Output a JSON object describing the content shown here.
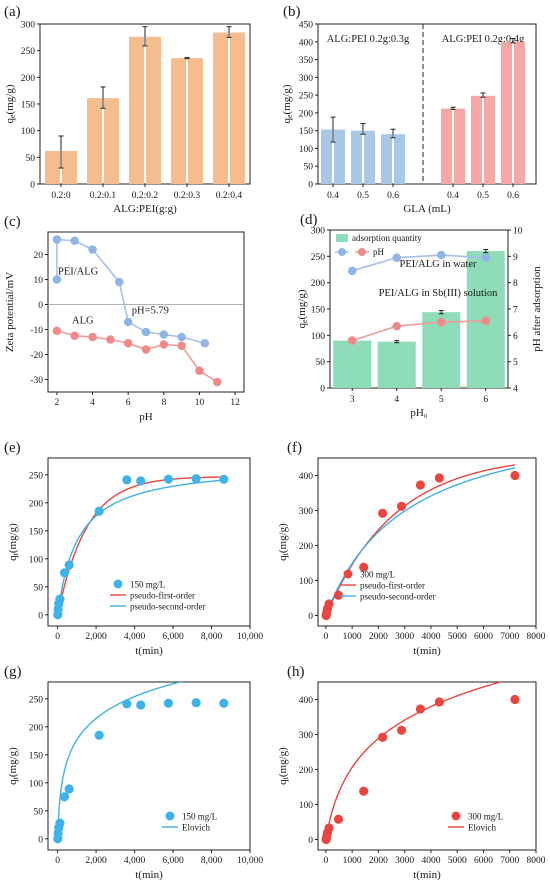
{
  "colors": {
    "orange": "#f5bc8e",
    "blue": "#a9c8e8",
    "pink": "#f7a8a6",
    "green": "#8fdcb8",
    "blue_marker": "#8fb6e6",
    "blue_line": "#a9bff0",
    "red_marker": "#f08a8a",
    "red_line": "#ef9a9a",
    "kin_red": "#e8463e",
    "kin_blue": "#3fb2e8",
    "gray_line": "#999999",
    "dashed": "#222222"
  },
  "chart_data": [
    {
      "panel": "(a)",
      "type": "bar",
      "categories": [
        "0.2:0",
        "0.2:0.1",
        "0.2:0.2",
        "0.2:0.3",
        "0.2:0.4"
      ],
      "values": [
        [
          62,
          62
        ],
        [
          161,
          161
        ],
        [
          276,
          276
        ],
        [
          236,
          236
        ],
        [
          284,
          284
        ]
      ],
      "error_bars": [
        [
          60,
          30
        ],
        [
          162,
          20
        ],
        [
          277,
          18
        ],
        [
          236,
          1
        ],
        [
          285,
          10
        ]
      ],
      "xlabel": "ALG:PEI(g:g)",
      "ylabel": "q_e(mg/g)",
      "ylim": [
        0,
        300
      ],
      "yticks": [
        "0",
        "50",
        "100",
        "150",
        "200",
        "250",
        "300"
      ]
    },
    {
      "panel": "(b)",
      "type": "bar",
      "groups": [
        "ALG:PEI 0.2g:0.3g",
        "ALG:PEI 0.2g:0.4g"
      ],
      "categories": [
        "0.4",
        "0.5",
        "0.6",
        "0.4",
        "0.5",
        "0.6"
      ],
      "values": [
        [
          153,
          153
        ],
        [
          150,
          150
        ],
        [
          140,
          140
        ],
        [
          212,
          212
        ],
        [
          248,
          248
        ],
        [
          400,
          400
        ]
      ],
      "error_bars": [
        [
          153,
          35
        ],
        [
          155,
          15
        ],
        [
          142,
          12
        ],
        [
          213,
          3
        ],
        [
          250,
          6
        ],
        [
          403,
          6
        ]
      ],
      "xlabel": "GLA (mL)",
      "ylabel": "q_e(mg/g)",
      "ylim": [
        0,
        450
      ],
      "yticks": [
        "0",
        "50",
        "100",
        "150",
        "200",
        "250",
        "300",
        "350",
        "400",
        "450"
      ]
    },
    {
      "panel": "(c)",
      "type": "line",
      "series": [
        {
          "name": "PEI/ALG",
          "x": [
            2,
            2,
            3,
            4,
            5.5,
            6,
            7,
            8,
            9,
            10.3
          ],
          "y": [
            10,
            26,
            25.5,
            22,
            9,
            -7,
            -11,
            -12,
            -13,
            -15.5
          ]
        },
        {
          "name": "ALG",
          "x": [
            2,
            3,
            4,
            5,
            6,
            7,
            8,
            9,
            10,
            11
          ],
          "y": [
            -10.5,
            -12.5,
            -13,
            -14,
            -15.5,
            -18,
            -16,
            -16.5,
            -26.5,
            -31
          ]
        }
      ],
      "annotation": "pH=5.79",
      "xlabel": "pH",
      "ylabel": "Zeta potential/mV",
      "xlim": [
        1.5,
        12.5
      ],
      "ylim": [
        -35,
        29
      ],
      "xticks": [
        "2",
        "4",
        "6",
        "8",
        "10",
        "12"
      ],
      "yticks": [
        "-30",
        "-20",
        "-10",
        "0",
        "10",
        "20"
      ]
    },
    {
      "panel": "(d)",
      "type": "bar",
      "categories": [
        "3",
        "4",
        "5",
        "6"
      ],
      "values": [
        90,
        88,
        144,
        260
      ],
      "error_bars": [
        2,
        2,
        3,
        3
      ],
      "series": [
        {
          "name": "pH",
          "values": [
            8.45,
            8.95,
            9.05,
            8.95
          ]
        },
        {
          "name": "pH",
          "values": [
            5.8,
            6.35,
            6.5,
            6.55
          ]
        }
      ],
      "legend": [
        "adsorption quantity",
        "pH"
      ],
      "annotations": [
        "PEI/ALG in water",
        "PEI/ALG in Sb(III) solution"
      ],
      "xlabel": "pH₀",
      "ylabel": "q_e(mg/g)",
      "ylabel_right": "pH after adsorption",
      "ylim": [
        0,
        300
      ],
      "ylim_right": [
        4,
        10
      ],
      "yticks": [
        "0",
        "50",
        "100",
        "150",
        "200",
        "250",
        "300"
      ],
      "yticks_right": [
        "4",
        "5",
        "6",
        "7",
        "8",
        "9",
        "10"
      ]
    },
    {
      "panel": "(e)",
      "type": "scatter",
      "series": [
        {
          "name": "150 mg/L",
          "x": [
            10,
            30,
            60,
            120,
            360,
            600,
            2160,
            3600,
            4320,
            5760,
            7200,
            8640
          ],
          "y": [
            0,
            10,
            20,
            28,
            75,
            89,
            185,
            241,
            239,
            242,
            243,
            242
          ]
        },
        {
          "name": "pseudo-first-order"
        },
        {
          "name": "pseudo-second-order"
        }
      ],
      "xlabel": "t(min)",
      "ylabel": "q_t(mg/g)",
      "xlim": [
        -500,
        10000
      ],
      "ylim": [
        -20,
        280
      ],
      "xticks": [
        "0",
        "2,000",
        "4,000",
        "6,000",
        "8,000",
        "10,000"
      ],
      "yticks": [
        "0",
        "50",
        "100",
        "150",
        "200",
        "250"
      ]
    },
    {
      "panel": "(f)",
      "type": "scatter",
      "series": [
        {
          "name": "300 mg/L",
          "x": [
            10,
            30,
            60,
            120,
            480,
            1440,
            2160,
            2880,
            3600,
            4320,
            7200
          ],
          "y": [
            0,
            8,
            20,
            33,
            58,
            138,
            292,
            312,
            373,
            393,
            400
          ]
        },
        {
          "name": "pseudo-first-order"
        },
        {
          "name": "pseudo-second-order"
        }
      ],
      "xlabel": "t(min)",
      "ylabel": "q_t(mg/g)",
      "xlim": [
        -300,
        8000
      ],
      "ylim": [
        -30,
        450
      ],
      "xticks": [
        "0",
        "1000",
        "2000",
        "3000",
        "4000",
        "5000",
        "6000",
        "7000",
        "8000"
      ],
      "yticks": [
        "0",
        "100",
        "200",
        "300",
        "400"
      ]
    },
    {
      "panel": "(g)",
      "type": "scatter",
      "series": [
        {
          "name": "150 mg/L",
          "x": [
            10,
            30,
            60,
            120,
            360,
            600,
            2160,
            3600,
            4320,
            5760,
            7200,
            8640
          ],
          "y": [
            0,
            10,
            20,
            28,
            75,
            89,
            185,
            241,
            239,
            242,
            243,
            242
          ]
        },
        {
          "name": "Elovich"
        }
      ],
      "xlabel": "t(min)",
      "ylabel": "q_t(mg/g)",
      "xlim": [
        -500,
        10000
      ],
      "ylim": [
        -20,
        280
      ],
      "xticks": [
        "0",
        "2,000",
        "4,000",
        "6,000",
        "8,000",
        "10,000"
      ],
      "yticks": [
        "0",
        "50",
        "100",
        "150",
        "200",
        "250"
      ]
    },
    {
      "panel": "(h)",
      "type": "scatter",
      "series": [
        {
          "name": "300 mg/L",
          "x": [
            10,
            30,
            60,
            120,
            480,
            1440,
            2160,
            2880,
            3600,
            4320,
            7200
          ],
          "y": [
            0,
            8,
            20,
            33,
            58,
            138,
            292,
            312,
            373,
            393,
            400
          ]
        },
        {
          "name": "Elovich"
        }
      ],
      "xlabel": "t(min)",
      "ylabel": "q_t(mg/g)",
      "xlim": [
        -300,
        8000
      ],
      "ylim": [
        -30,
        450
      ],
      "xticks": [
        "0",
        "1000",
        "2000",
        "3000",
        "4000",
        "5000",
        "6000",
        "7000",
        "8000"
      ],
      "yticks": [
        "0",
        "100",
        "200",
        "300",
        "400"
      ]
    }
  ]
}
